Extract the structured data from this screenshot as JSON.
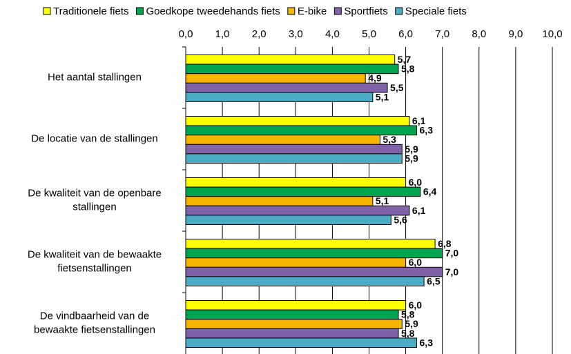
{
  "chart_data": {
    "type": "bar",
    "orientation": "horizontal",
    "categories": [
      [
        "Het aantal stallingen"
      ],
      [
        "De locatie van de stallingen"
      ],
      [
        "De kwaliteit van de openbare",
        "stallingen"
      ],
      [
        "De kwaliteit van de bewaakte",
        "fietsenstallingen"
      ],
      [
        "De vindbaarheid van de",
        "bewaakte fietsenstallingen"
      ]
    ],
    "series": [
      {
        "name": "Traditionele fiets",
        "color": "#ffff00",
        "values": [
          5.7,
          6.1,
          6.0,
          6.8,
          6.0
        ],
        "value_labels": [
          "5,7",
          "6,1",
          "6,0",
          "6,8",
          "6,0"
        ]
      },
      {
        "name": "Goedkope tweedehands fiets",
        "color": "#00a64f",
        "values": [
          5.8,
          6.3,
          6.4,
          7.0,
          5.8
        ],
        "value_labels": [
          "5,8",
          "6,3",
          "6,4",
          "7,0",
          "5,8"
        ]
      },
      {
        "name": "E-bike",
        "color": "#f7b500",
        "values": [
          4.9,
          5.3,
          5.1,
          6.0,
          5.9
        ],
        "value_labels": [
          "4,9",
          "5,3",
          "5,1",
          "6,0",
          "5,9"
        ]
      },
      {
        "name": "Sportfiets",
        "color": "#7f62a8",
        "values": [
          5.5,
          5.9,
          6.1,
          7.0,
          5.8
        ],
        "value_labels": [
          "5,5",
          "5,9",
          "6,1",
          "7,0",
          "5,8"
        ]
      },
      {
        "name": "Speciale fiets",
        "color": "#4bacc6",
        "values": [
          5.1,
          5.9,
          5.6,
          6.5,
          6.3
        ],
        "value_labels": [
          "5,1",
          "5,9",
          "5,6",
          "6,5",
          "6,3"
        ]
      }
    ],
    "xlim": [
      0,
      10
    ],
    "xticks": [
      {
        "value": 0,
        "label": "0,0"
      },
      {
        "value": 1,
        "label": "1,0"
      },
      {
        "value": 2,
        "label": "2,0"
      },
      {
        "value": 3,
        "label": "3,0"
      },
      {
        "value": 4,
        "label": "4,0"
      },
      {
        "value": 5,
        "label": "5,0"
      },
      {
        "value": 6,
        "label": "6,0"
      },
      {
        "value": 7,
        "label": "7,0"
      },
      {
        "value": 8,
        "label": "8,0"
      },
      {
        "value": 9,
        "label": "9,0"
      },
      {
        "value": 10,
        "label": "10,0"
      }
    ],
    "grid": true,
    "legend": "top"
  }
}
